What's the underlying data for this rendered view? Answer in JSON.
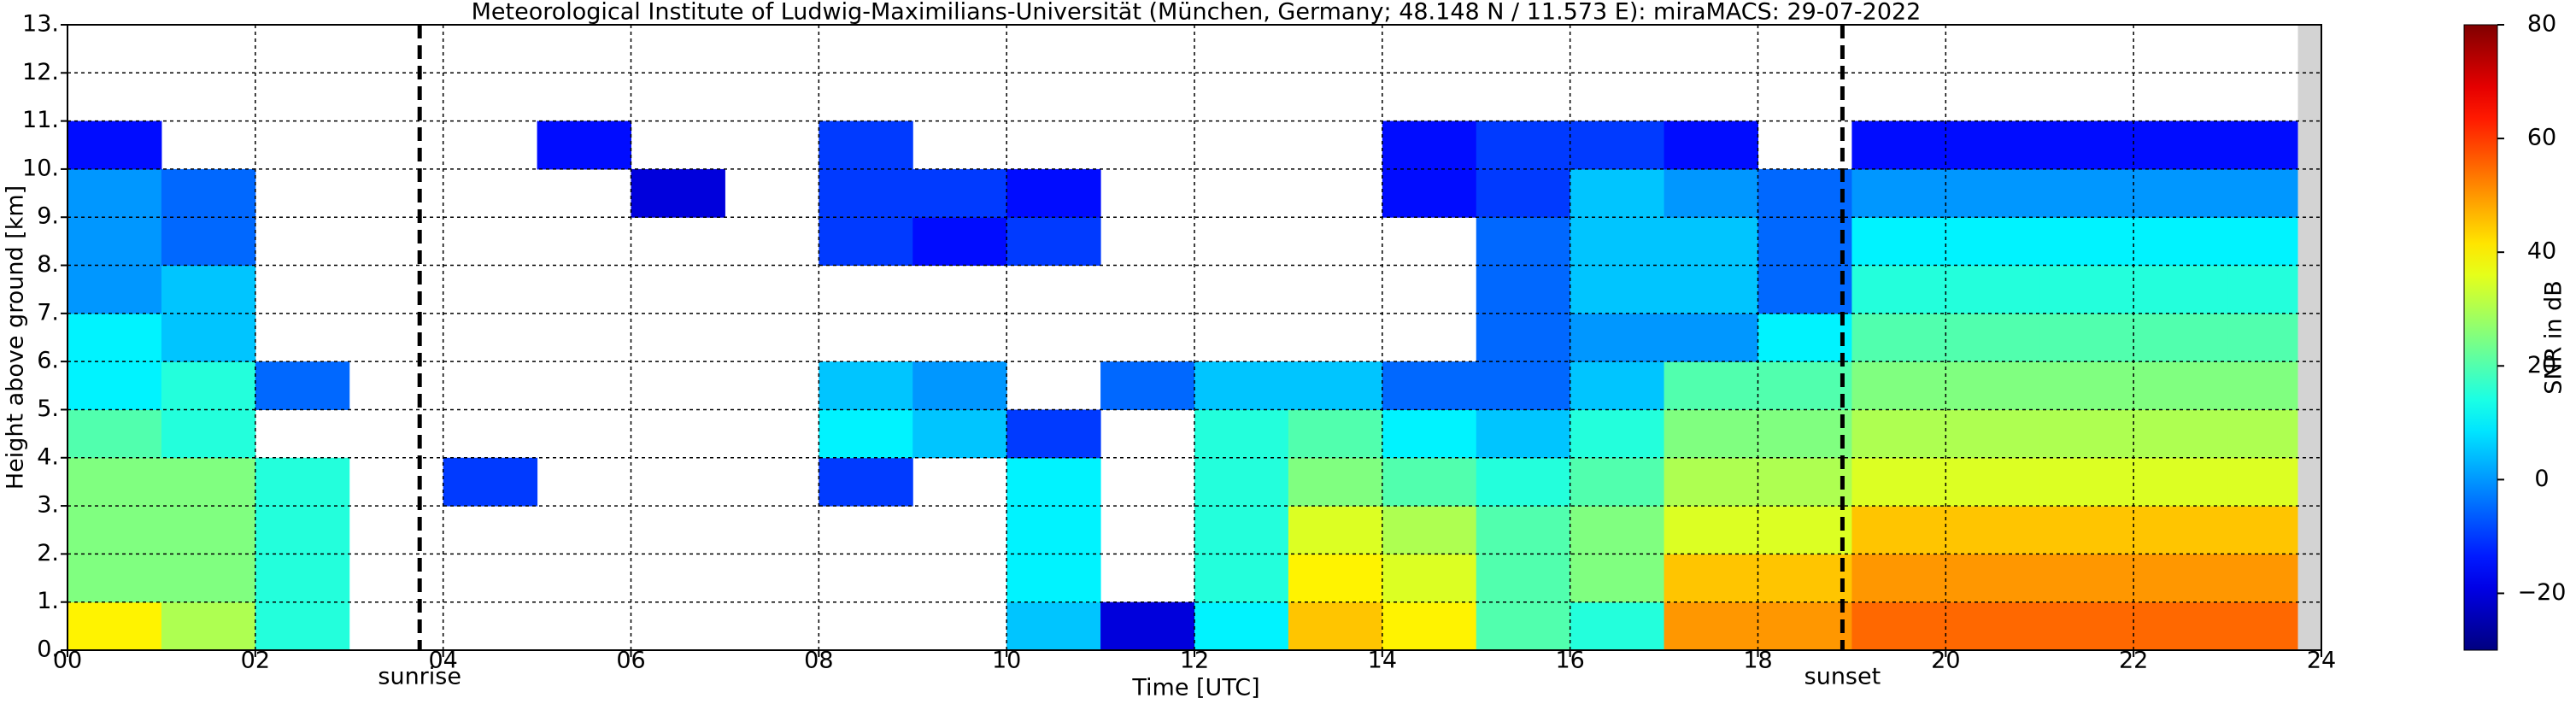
{
  "chart_data": {
    "type": "heatmap",
    "title": "Meteorological Institute of Ludwig-Maximilians-Universität (München, Germany; 48.148 N / 11.573 E):    miraMACS: 29-07-2022",
    "x_label": "Time [UTC]",
    "y_label": "Height above ground [km]",
    "colorbar_label": "SNR in dB",
    "xlim": [
      0,
      24
    ],
    "ylim": [
      0,
      13
    ],
    "clim": [
      -30,
      80
    ],
    "grid": true,
    "xticks": [
      {
        "value": 0,
        "label": "00"
      },
      {
        "value": 2,
        "label": "02"
      },
      {
        "value": 4,
        "label": "04"
      },
      {
        "value": 6,
        "label": "06"
      },
      {
        "value": 8,
        "label": "08"
      },
      {
        "value": 10,
        "label": "10"
      },
      {
        "value": 12,
        "label": "12"
      },
      {
        "value": 14,
        "label": "14"
      },
      {
        "value": 16,
        "label": "16"
      },
      {
        "value": 18,
        "label": "18"
      },
      {
        "value": 20,
        "label": "20"
      },
      {
        "value": 22,
        "label": "22"
      },
      {
        "value": 24,
        "label": "24"
      }
    ],
    "yticks": [
      {
        "value": 0,
        "label": "0."
      },
      {
        "value": 1,
        "label": "1."
      },
      {
        "value": 2,
        "label": "2."
      },
      {
        "value": 3,
        "label": "3."
      },
      {
        "value": 4,
        "label": "4."
      },
      {
        "value": 5,
        "label": "5."
      },
      {
        "value": 6,
        "label": "6."
      },
      {
        "value": 7,
        "label": "7."
      },
      {
        "value": 8,
        "label": "8."
      },
      {
        "value": 9,
        "label": "9."
      },
      {
        "value": 10,
        "label": "10."
      },
      {
        "value": 11,
        "label": "11."
      },
      {
        "value": 12,
        "label": "12."
      },
      {
        "value": 13,
        "label": "13."
      }
    ],
    "cticks": [
      {
        "value": -20,
        "label": "−20"
      },
      0,
      20,
      40,
      60,
      80
    ],
    "markers": [
      {
        "x": 3.75,
        "label": "sunrise"
      },
      {
        "x": 18.9,
        "label": "sunset"
      }
    ],
    "x_bins": [
      0,
      1,
      2,
      3,
      4,
      5,
      6,
      7,
      8,
      9,
      10,
      11,
      12,
      13,
      14,
      15,
      16,
      17,
      18,
      19,
      20,
      21,
      22,
      23,
      24
    ],
    "y_bins": [
      0,
      1,
      2,
      3,
      4,
      5,
      6,
      7,
      8,
      9,
      10,
      11
    ],
    "snr": [
      [
        40,
        30,
        15,
        null,
        null,
        null,
        null,
        null,
        null,
        null,
        5,
        -20,
        10,
        45,
        40,
        20,
        15,
        50,
        50,
        55,
        55,
        55,
        55,
        55
      ],
      [
        25,
        25,
        15,
        null,
        null,
        null,
        null,
        null,
        null,
        null,
        10,
        null,
        15,
        40,
        35,
        20,
        25,
        45,
        45,
        50,
        50,
        50,
        50,
        50
      ],
      [
        25,
        25,
        15,
        null,
        null,
        null,
        null,
        null,
        null,
        null,
        10,
        null,
        15,
        35,
        30,
        20,
        25,
        35,
        35,
        45,
        45,
        45,
        45,
        45
      ],
      [
        25,
        25,
        15,
        null,
        -10,
        null,
        null,
        null,
        -10,
        null,
        10,
        null,
        15,
        25,
        20,
        15,
        20,
        30,
        30,
        35,
        35,
        35,
        35,
        35
      ],
      [
        20,
        15,
        null,
        null,
        null,
        null,
        null,
        null,
        10,
        5,
        -10,
        null,
        15,
        20,
        10,
        5,
        15,
        25,
        25,
        30,
        30,
        30,
        30,
        30
      ],
      [
        10,
        15,
        -5,
        null,
        null,
        null,
        null,
        null,
        5,
        0,
        null,
        -5,
        5,
        5,
        -5,
        -5,
        5,
        20,
        20,
        25,
        25,
        25,
        25,
        25
      ],
      [
        10,
        5,
        null,
        null,
        null,
        null,
        null,
        null,
        null,
        null,
        null,
        null,
        null,
        null,
        null,
        -5,
        0,
        0,
        10,
        20,
        20,
        20,
        20,
        20
      ],
      [
        0,
        5,
        null,
        null,
        null,
        null,
        null,
        null,
        null,
        null,
        null,
        null,
        null,
        null,
        null,
        -5,
        5,
        5,
        -5,
        15,
        15,
        15,
        15,
        15
      ],
      [
        0,
        -5,
        null,
        null,
        null,
        null,
        null,
        null,
        -10,
        -15,
        -10,
        null,
        null,
        null,
        null,
        -5,
        5,
        5,
        -5,
        10,
        10,
        10,
        10,
        10
      ],
      [
        0,
        -5,
        null,
        null,
        null,
        null,
        -20,
        null,
        -10,
        -10,
        -15,
        null,
        null,
        null,
        -15,
        -10,
        5,
        0,
        -5,
        0,
        0,
        0,
        0,
        0
      ],
      [
        -15,
        null,
        null,
        null,
        null,
        -15,
        null,
        null,
        -10,
        null,
        null,
        null,
        null,
        null,
        -15,
        -10,
        -10,
        -15,
        null,
        -15,
        -15,
        -15,
        -15,
        -15
      ]
    ]
  }
}
